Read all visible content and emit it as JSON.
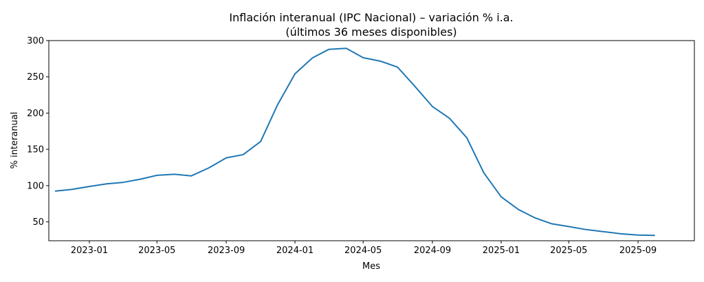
{
  "chart_data": {
    "type": "line",
    "title": "Inflación interanual (IPC Nacional) – variación % i.a.",
    "subtitle": "(últimos 36 meses disponibles)",
    "xlabel": "Mes",
    "ylabel": "% interanual",
    "ylim": [
      24,
      300
    ],
    "xlim": [
      "2022-10-21",
      "2025-12-10"
    ],
    "grid": false,
    "line_color": "#1f77b4",
    "x_ticks": [
      "2023-01",
      "2023-05",
      "2023-09",
      "2024-01",
      "2024-05",
      "2024-09",
      "2025-01",
      "2025-05",
      "2025-09"
    ],
    "y_ticks": [
      50,
      100,
      150,
      200,
      250,
      300
    ],
    "series": [
      {
        "name": "IPC Nacional",
        "x": [
          "2022-11",
          "2022-12",
          "2023-01",
          "2023-02",
          "2023-03",
          "2023-04",
          "2023-05",
          "2023-06",
          "2023-07",
          "2023-08",
          "2023-09",
          "2023-10",
          "2023-11",
          "2023-12",
          "2024-01",
          "2024-02",
          "2024-03",
          "2024-04",
          "2024-05",
          "2024-06",
          "2024-07",
          "2024-08",
          "2024-09",
          "2024-10",
          "2024-11",
          "2024-12",
          "2025-01",
          "2025-02",
          "2025-03",
          "2025-04",
          "2025-05",
          "2025-06",
          "2025-07",
          "2025-08",
          "2025-09",
          "2025-10"
        ],
        "values": [
          92.4,
          94.8,
          98.8,
          102.5,
          104.3,
          108.8,
          114.2,
          115.6,
          113.4,
          124.4,
          138.3,
          142.7,
          160.9,
          211.4,
          254.2,
          276.2,
          287.9,
          289.4,
          276.4,
          271.5,
          263.4,
          236.7,
          209.0,
          193.0,
          166.0,
          117.8,
          84.5,
          66.9,
          55.9,
          47.3,
          43.5,
          39.4,
          36.6,
          33.6,
          31.8,
          31.3
        ]
      }
    ]
  }
}
